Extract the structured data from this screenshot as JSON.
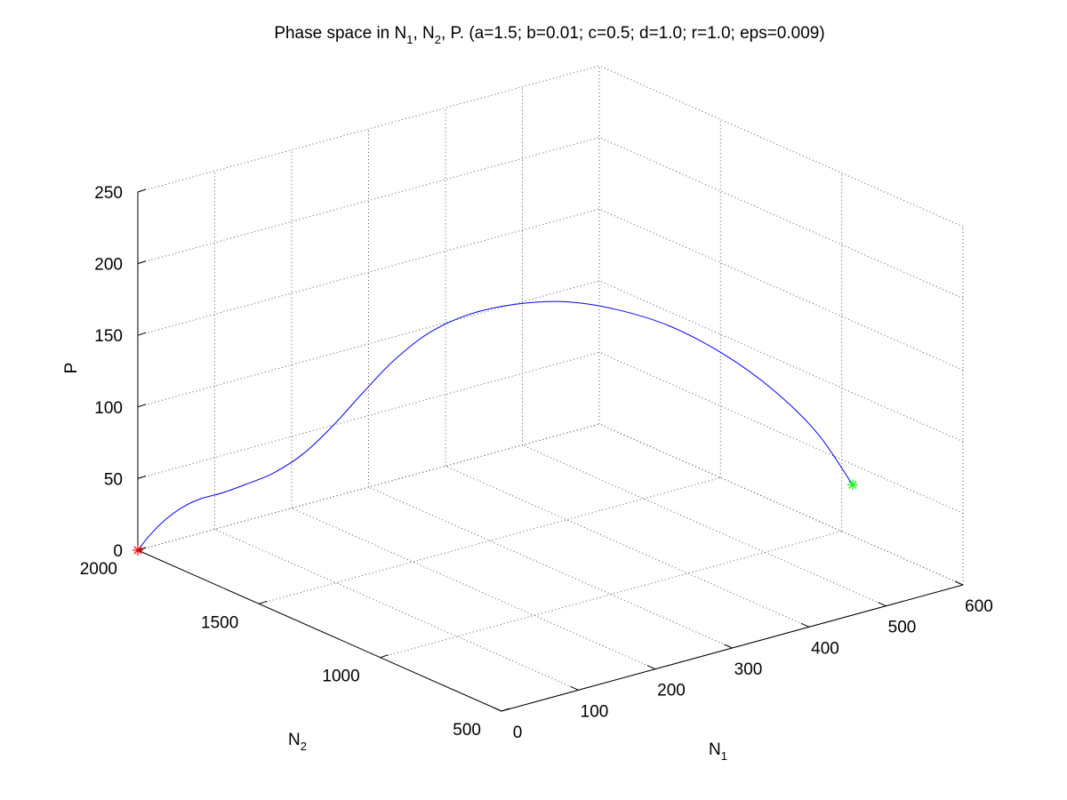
{
  "chart_data": {
    "type": "line",
    "projection": "3d",
    "title": {
      "prefix": "Phase space in N",
      "sub1": "1",
      "mid": ", N",
      "sub2": "2",
      "suffix": ", P. (a=1.5; b=0.01; c=0.5; d=1.0; r=1.0; eps=0.009)"
    },
    "axes": {
      "x": {
        "label": "N",
        "label_sub": "1",
        "range": [
          0,
          600
        ],
        "ticks": [
          0,
          100,
          200,
          300,
          400,
          500,
          600
        ]
      },
      "y": {
        "label": "N",
        "label_sub": "2",
        "range": [
          500,
          2000
        ],
        "ticks": [
          500,
          1000,
          1500,
          2000
        ]
      },
      "z": {
        "label": "P",
        "range": [
          0,
          250
        ],
        "ticks": [
          0,
          50,
          100,
          150,
          200,
          250
        ]
      }
    },
    "grid": true,
    "series": [
      {
        "color": "#0000ff",
        "points": [
          [
            0,
            2000,
            0
          ],
          [
            4,
            1962,
            13
          ],
          [
            10,
            1918,
            26
          ],
          [
            19,
            1873,
            37
          ],
          [
            30,
            1834,
            44
          ],
          [
            47,
            1801,
            48
          ],
          [
            71,
            1780,
            52
          ],
          [
            99,
            1753,
            58
          ],
          [
            125,
            1711,
            71
          ],
          [
            148,
            1662,
            91
          ],
          [
            171,
            1613,
            114
          ],
          [
            197,
            1568,
            136
          ],
          [
            227,
            1521,
            154
          ],
          [
            262,
            1466,
            166
          ],
          [
            301,
            1403,
            172
          ],
          [
            344,
            1331,
            173
          ],
          [
            387,
            1254,
            167
          ],
          [
            431,
            1172,
            155
          ],
          [
            475,
            1085,
            135
          ],
          [
            512,
            999,
            111
          ],
          [
            542,
            915,
            83
          ],
          [
            563,
            838,
            50
          ]
        ]
      }
    ],
    "markers": [
      {
        "name": "start",
        "symbol": "*",
        "color": "#ff0000",
        "point": [
          0,
          2000,
          0
        ]
      },
      {
        "name": "end",
        "symbol": "*",
        "color": "#00ff00",
        "point": [
          563,
          838,
          50
        ]
      }
    ]
  }
}
